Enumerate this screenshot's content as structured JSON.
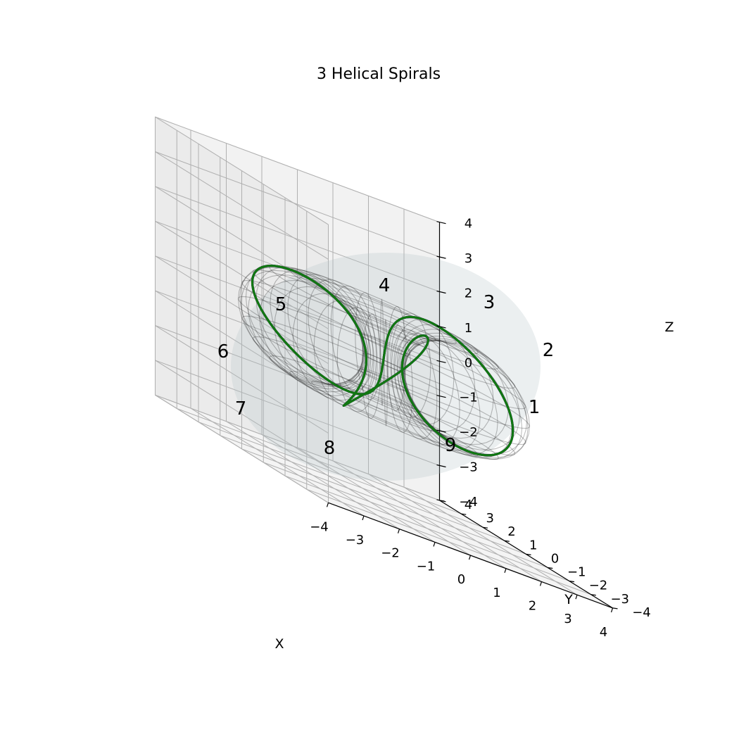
{
  "chart_data": {
    "type": "line3d",
    "title": "3 Helical Spirals",
    "xlabel": "X",
    "ylabel": "Y",
    "zlabel": "Z",
    "xlim": [
      -4,
      4
    ],
    "ylim": [
      -4,
      4
    ],
    "zlim": [
      -4,
      4
    ],
    "ticks": [
      -4,
      -3,
      -2,
      -1,
      0,
      1,
      2,
      3,
      4
    ],
    "tick_labels": [
      "−4",
      "−3",
      "−2",
      "−1",
      "0",
      "1",
      "2",
      "3",
      "4"
    ],
    "grid": true,
    "surface": {
      "type": "torus",
      "major_radius": 2,
      "minor_radius": 1.5,
      "color": "#b0bec5",
      "alpha": 0.25
    },
    "series": [
      {
        "color": "#cc1111",
        "phase_deg": 0
      },
      {
        "color": "#1111cc",
        "phase_deg": 120
      },
      {
        "color": "#117711",
        "phase_deg": 240
      }
    ],
    "winding": {
      "toroidal_turns": 1,
      "poloidal_turns": 3
    },
    "annotations": [
      "1",
      "2",
      "3",
      "4",
      "5",
      "6",
      "7",
      "8",
      "9"
    ]
  }
}
